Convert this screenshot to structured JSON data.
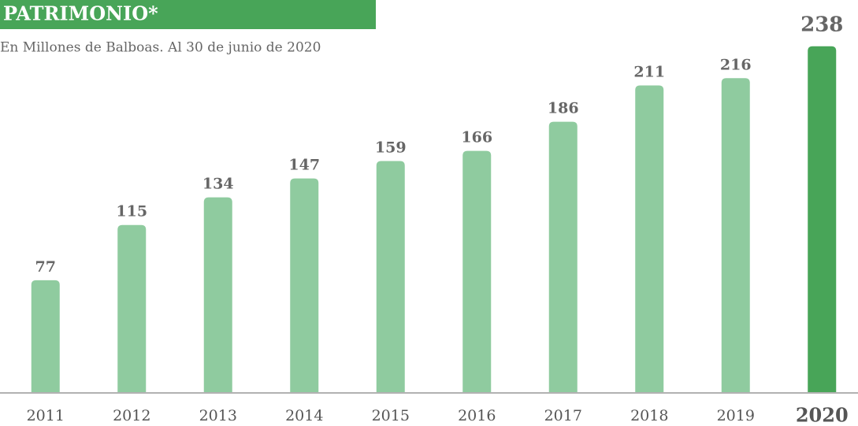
{
  "chart_data": {
    "type": "bar",
    "title": "PATRIMONIO*",
    "subtitle": "En Millones de Balboas. Al 30 de junio de 2020",
    "categories": [
      "2011",
      "2012",
      "2013",
      "2014",
      "2015",
      "2016",
      "2017",
      "2018",
      "2019",
      "2020"
    ],
    "values": [
      77,
      115,
      134,
      147,
      159,
      166,
      186,
      211,
      216,
      238
    ],
    "color": "#8fcb9f",
    "colors": [
      "#8fcb9f",
      "#8fcb9f",
      "#8fcb9f",
      "#8fcb9f",
      "#8fcb9f",
      "#8fcb9f",
      "#8fcb9f",
      "#8fcb9f",
      "#8fcb9f",
      "#48a558"
    ],
    "ylim": [
      0,
      240
    ],
    "grid": false
  }
}
